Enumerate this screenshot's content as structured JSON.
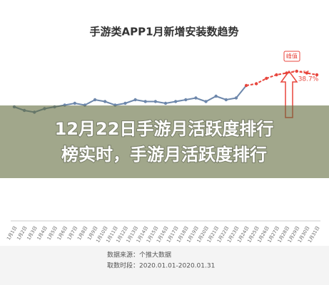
{
  "chart_data": {
    "type": "line",
    "title": "手游类APP1月新增安装数趋势",
    "categories": [
      "1月1日",
      "1月2日",
      "1月3日",
      "1月4日",
      "1月5日",
      "1月6日",
      "1月7日",
      "1月8日",
      "1月9日",
      "1月10日",
      "1月11日",
      "1月12日",
      "1月13日",
      "1月14日",
      "1月15日",
      "1月16日",
      "1月17日",
      "1月18日",
      "1月19日",
      "1月20日",
      "1月21日",
      "1月22日",
      "1月23日",
      "1月24日",
      "1月25日",
      "1月26日",
      "1月27日",
      "1月28日",
      "1月29日",
      "1月30日",
      "1月31日"
    ],
    "series": [
      {
        "color": "#6d87ab",
        "values": [
          64,
          62,
          61,
          63,
          64,
          65,
          66,
          65,
          68,
          67,
          65,
          66,
          68,
          67,
          67,
          66,
          67,
          68,
          69,
          67,
          70,
          68,
          69,
          null,
          null,
          null,
          null,
          null,
          null,
          null,
          null
        ]
      },
      {
        "color": "#e8453c",
        "values": [
          null,
          null,
          null,
          null,
          null,
          null,
          null,
          null,
          null,
          null,
          null,
          null,
          null,
          null,
          null,
          null,
          null,
          null,
          null,
          null,
          null,
          null,
          null,
          76,
          77,
          80,
          82,
          83,
          84,
          83,
          82
        ]
      }
    ],
    "ylim": [
      0,
      100
    ],
    "annotations": [
      "峰值",
      "38.7%"
    ],
    "overlay": [
      "12月22日手游月活跃度排行",
      "榜实时，手游月活跃度排行"
    ],
    "source": "数据来源：个推大数据",
    "period": "取数时段：2020.01.01-2020.01.31"
  }
}
